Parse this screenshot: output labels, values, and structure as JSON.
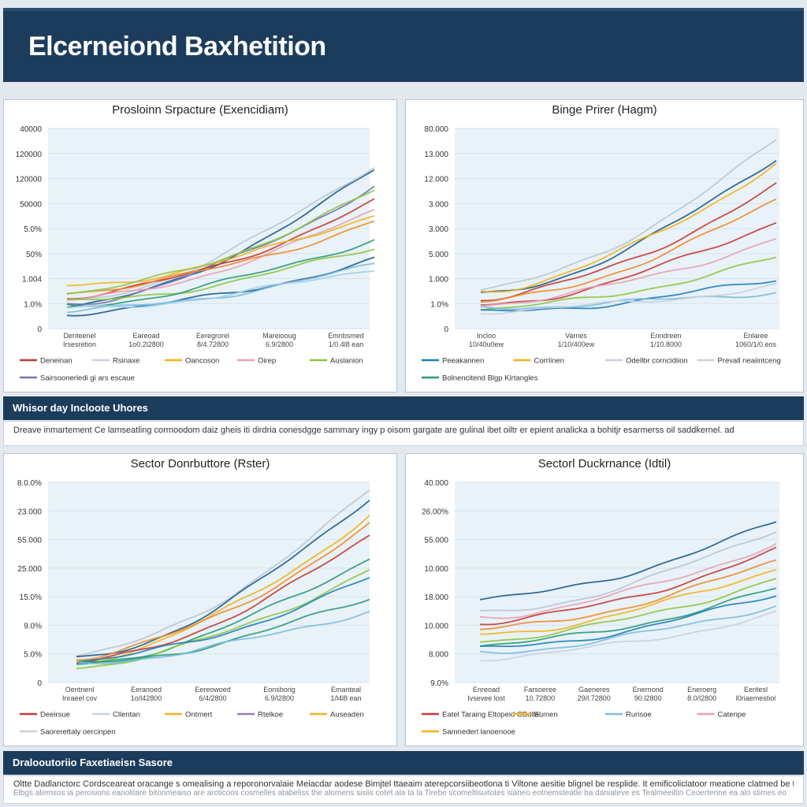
{
  "header": {
    "title": "Elcerneiond Baxhetition"
  },
  "band1": {
    "title": "Whisor day Incloote Uhores",
    "text": "Dreave inmartement Ce lamseatling cormoodom daiz gheis iti dirdria conesdgge sammary ingy p oisom gargate are gulinal ibet oiltr er epient analicka a bohitjr esarmerss oil saddkernel. ad"
  },
  "band2": {
    "title": "Dralooutoriio Faxetiaeisn Sasore",
    "text": "Oltte Dadlanctorc Cordsceareat oracange s omealising a reporonorvalaie Meiacdar aodese Bimjtel ttaeaim aterepcorsiibeotlona ti Viltone aesitie blignel be resplide. It emificoliclatoor meatione clatmed be talk",
    "subtext": "Elbgs atemsos ia perosions eanolitare bitonmeaiso are arcticoos cosmelles atabeliss the alomens sisiis cotet ala ta la  Tirebe scomeltisuitotes sianeo eotnemsteatle ba daniateve es Tealmeeiltin Ceoertenne ea alo stimes eo"
  },
  "chart_data": [
    {
      "type": "line",
      "title": "Prosloinn Srpacture (Exencidiam)",
      "yticks": [
        "0",
        "1.0%",
        "1.004",
        "50%",
        "5.0%",
        "50000",
        "120000",
        "120000",
        "40000"
      ],
      "xticks": [
        [
          "Denteenel",
          "Irsesretion"
        ],
        [
          "Eareoad",
          "1o0.2l2800"
        ],
        [
          "Eeregrorel",
          "8/4.72800"
        ],
        [
          "Mareiooug",
          "6.9/2800"
        ],
        [
          "Emnbsmed",
          "1/0.4l8 ean"
        ]
      ],
      "legend": [
        {
          "name": "Deneinan",
          "color": "#c63a32"
        },
        {
          "name": "Rsinaxe",
          "color": "#c9d2dc"
        },
        {
          "name": "Oancoson",
          "color": "#f2b21b"
        },
        {
          "name": "Oirep",
          "color": "#e9a1b0"
        },
        {
          "name": "Auslanion",
          "color": "#8dc63f"
        },
        {
          "name": "Sairsoonerledi gi ars escaue",
          "color": "#7b6fb3"
        }
      ],
      "series": [
        {
          "color": "#1d5e8c",
          "start": 0.03,
          "end": 0.81
        },
        {
          "color": "#b8c6d4",
          "start": 0.06,
          "end": 0.84
        },
        {
          "color": "#7b6fb3",
          "start": 0.05,
          "end": 0.72
        },
        {
          "color": "#c63a32",
          "start": 0.09,
          "end": 0.63
        },
        {
          "color": "#e9a1b0",
          "start": 0.07,
          "end": 0.58
        },
        {
          "color": "#f2b21b",
          "start": 0.15,
          "end": 0.56
        },
        {
          "color": "#f28a2a",
          "start": 0.12,
          "end": 0.52
        },
        {
          "color": "#8dc63f",
          "start": 0.11,
          "end": 0.69
        },
        {
          "color": "#8dc63f",
          "start": 0.06,
          "end": 0.37
        },
        {
          "color": "#2a9b74",
          "start": 0.04,
          "end": 0.42
        },
        {
          "color": "#1d5e8c",
          "start": 0.0,
          "end": 0.3
        },
        {
          "color": "#79bde0",
          "start": 0.01,
          "end": 0.27
        },
        {
          "color": "#9fd0ea",
          "start": 0.02,
          "end": 0.25
        }
      ]
    },
    {
      "type": "line",
      "title": "Binge Prirer (Hagm)",
      "yticks": [
        "0",
        "1.0%",
        "1.000",
        "5.000",
        "3.000",
        "3.000",
        "12.000",
        "13.000",
        "80.000"
      ],
      "xticks": [
        [
          "Incloo",
          "10/40u0ew"
        ],
        [
          "Varnes",
          "1/10/400ew"
        ],
        [
          "Enndreen",
          "1/10.8000"
        ],
        [
          "Enlaree",
          "1060/1/0.eos"
        ]
      ],
      "legend": [
        {
          "name": "Peeakannen",
          "color": "#1d7fb8"
        },
        {
          "name": "Corrlinen",
          "color": "#f2b21b"
        },
        {
          "name": "Odellbr corncidiion",
          "color": "#c9d2dc"
        },
        {
          "name": "Prevall neaiintceng",
          "color": "#c9d2dc"
        },
        {
          "name": "Bolnencitend Blgp Kirtangles",
          "color": "#2a9b74"
        }
      ],
      "series": [
        {
          "color": "#b8c6d4",
          "start": 0.13,
          "end": 0.98
        },
        {
          "color": "#1d5e8c",
          "start": 0.1,
          "end": 0.88
        },
        {
          "color": "#f2b21b",
          "start": 0.12,
          "end": 0.85
        },
        {
          "color": "#c63a32",
          "start": 0.08,
          "end": 0.72
        },
        {
          "color": "#f28a2a",
          "start": 0.06,
          "end": 0.64
        },
        {
          "color": "#c63a32",
          "start": 0.04,
          "end": 0.52
        },
        {
          "color": "#e9a1b0",
          "start": 0.05,
          "end": 0.42
        },
        {
          "color": "#8dc63f",
          "start": 0.02,
          "end": 0.31
        },
        {
          "color": "#1d7fb8",
          "start": 0.0,
          "end": 0.19
        },
        {
          "color": "#79bde0",
          "start": 0.03,
          "end": 0.12
        },
        {
          "color": "#c9d2dc",
          "start": 0.01,
          "end": 0.15
        }
      ]
    },
    {
      "type": "line",
      "title": "Sector Donrbuttore (Rster)",
      "yticks": [
        "0",
        "5.0%",
        "9.0%",
        "15.0%",
        "25.000",
        "55.000",
        "23.000",
        "8.0.0%"
      ],
      "xticks": [
        [
          "Oentnenl",
          "Inraeel cov"
        ],
        [
          "Eeranoed",
          "1o/l42800"
        ],
        [
          "Eereowoed",
          "6/4/2800"
        ],
        [
          "Eonsborig",
          "6.9/l2800"
        ],
        [
          "Emanteal",
          "1/l4l8 ean"
        ]
      ],
      "legend": [
        {
          "name": "Deeirsue",
          "color": "#c63a32"
        },
        {
          "name": "Cllentan",
          "color": "#c9d2dc"
        },
        {
          "name": "Ontmert",
          "color": "#f2b21b"
        },
        {
          "name": "Rtelkoe",
          "color": "#9b7ab3"
        },
        {
          "name": "Auseaden",
          "color": "#f2b21b"
        },
        {
          "name": "Saorerettaly oercinpen",
          "color": "#c9d2dc"
        }
      ],
      "series": [
        {
          "color": "#b8c6d4",
          "start": 0.06,
          "end": 1.0
        },
        {
          "color": "#1d5e8c",
          "start": 0.04,
          "end": 0.96
        },
        {
          "color": "#f2b21b",
          "start": 0.03,
          "end": 0.86
        },
        {
          "color": "#f28a2a",
          "start": 0.05,
          "end": 0.8
        },
        {
          "color": "#c63a32",
          "start": 0.02,
          "end": 0.74
        },
        {
          "color": "#2a9b74",
          "start": 0.01,
          "end": 0.62
        },
        {
          "color": "#8dc63f",
          "start": 0.0,
          "end": 0.55
        },
        {
          "color": "#1d7fb8",
          "start": 0.03,
          "end": 0.5
        },
        {
          "color": "#2a9b74",
          "start": 0.01,
          "end": 0.39
        },
        {
          "color": "#79bde0",
          "start": 0.02,
          "end": 0.32
        }
      ]
    },
    {
      "type": "line",
      "title": "Sectorl Duckrnance (Idtil)",
      "yticks": [
        "9.0%",
        "8.000",
        "10.000",
        "18.000",
        "10.000",
        "55.000",
        "26.00%",
        "40.000"
      ],
      "xticks": [
        [
          "Enreoad",
          "Ivsevee lost"
        ],
        [
          "Farsoeree",
          "10.72800"
        ],
        [
          "Gaeneres",
          "29/l.72800"
        ],
        [
          "Enernond",
          "90.l2800"
        ],
        [
          "Eneroerg",
          "8.0/l2800"
        ],
        [
          "Eeritesl",
          "l0riaemestiol"
        ]
      ],
      "legend": [
        {
          "name": "Eatel Taraing Eltopeid CBdllel",
          "color": "#c63a32"
        },
        {
          "name": "Sumen",
          "color": "#f2b21b"
        },
        {
          "name": "Rurisoe",
          "color": "#79bde0"
        },
        {
          "name": "Catenpe",
          "color": "#e9a1b0"
        },
        {
          "name": "Samnederl lanoenooe",
          "color": "#f2b21b"
        }
      ],
      "series": [
        {
          "color": "#1d5e8c",
          "start": 0.38,
          "end": 0.82
        },
        {
          "color": "#b8c6d4",
          "start": 0.3,
          "end": 0.78
        },
        {
          "color": "#e9a1b0",
          "start": 0.28,
          "end": 0.7
        },
        {
          "color": "#c63a32",
          "start": 0.25,
          "end": 0.66
        },
        {
          "color": "#f28a2a",
          "start": 0.21,
          "end": 0.6
        },
        {
          "color": "#f2b21b",
          "start": 0.18,
          "end": 0.56
        },
        {
          "color": "#8dc63f",
          "start": 0.15,
          "end": 0.5
        },
        {
          "color": "#2a9b74",
          "start": 0.12,
          "end": 0.44
        },
        {
          "color": "#1d7fb8",
          "start": 0.1,
          "end": 0.41
        },
        {
          "color": "#79bde0",
          "start": 0.08,
          "end": 0.35
        },
        {
          "color": "#c9d2dc",
          "start": 0.05,
          "end": 0.3
        }
      ]
    }
  ]
}
